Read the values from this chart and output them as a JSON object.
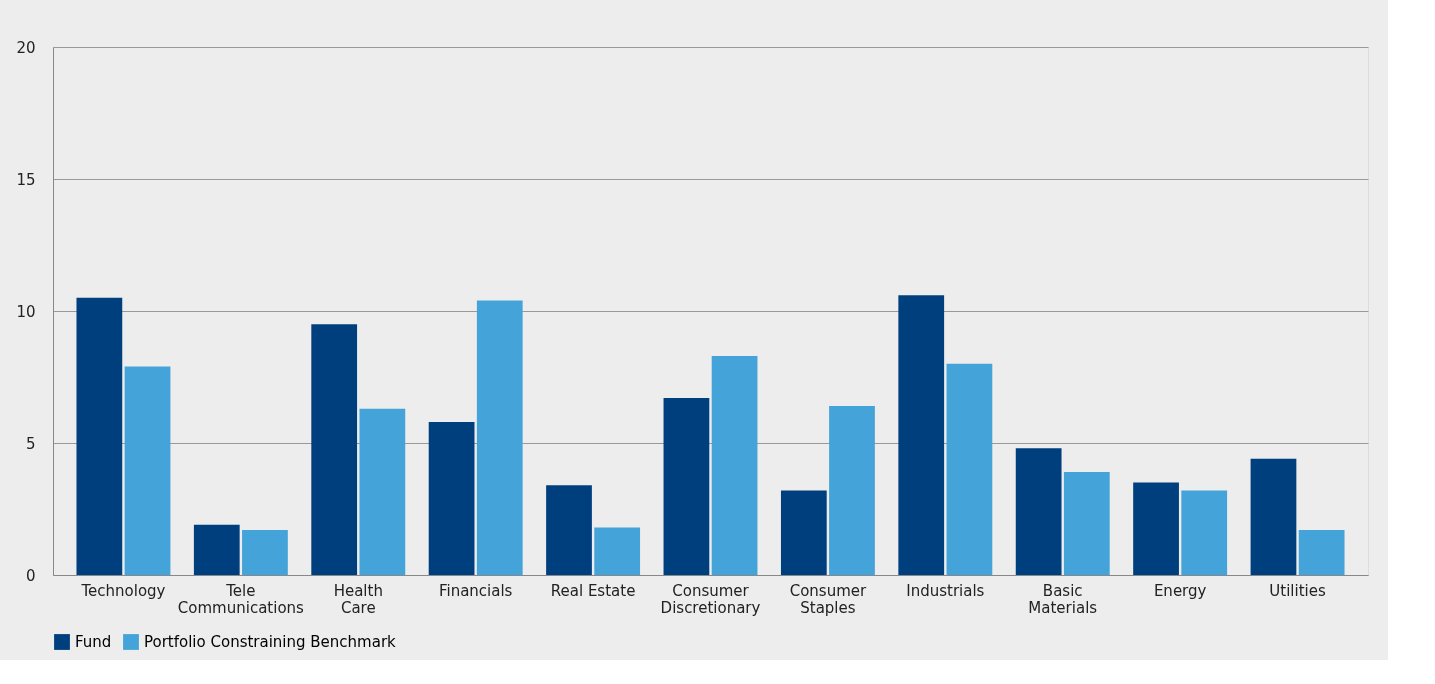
{
  "chart_data": {
    "type": "bar",
    "categories": [
      "Technology",
      "Tele\nCommunications",
      "Health\nCare",
      "Financials",
      "Real Estate",
      "Consumer\nDiscretionary",
      "Consumer\nStaples",
      "Industrials",
      "Basic\nMaterials",
      "Energy",
      "Utilities"
    ],
    "series": [
      {
        "name": "Fund",
        "color": "#003f7d",
        "values": [
          10.5,
          1.9,
          9.5,
          5.8,
          3.4,
          6.7,
          3.2,
          10.6,
          4.8,
          3.5,
          4.4
        ]
      },
      {
        "name": "Portfolio Constraining Benchmark",
        "color": "#44a3d8",
        "values": [
          7.9,
          1.7,
          6.3,
          10.4,
          1.8,
          8.3,
          6.4,
          8.0,
          3.9,
          3.2,
          1.7
        ]
      }
    ],
    "ylim": [
      0,
      20
    ],
    "yticks": [
      0,
      5,
      10,
      15,
      20
    ],
    "grid": "y",
    "legend": "bottom"
  }
}
